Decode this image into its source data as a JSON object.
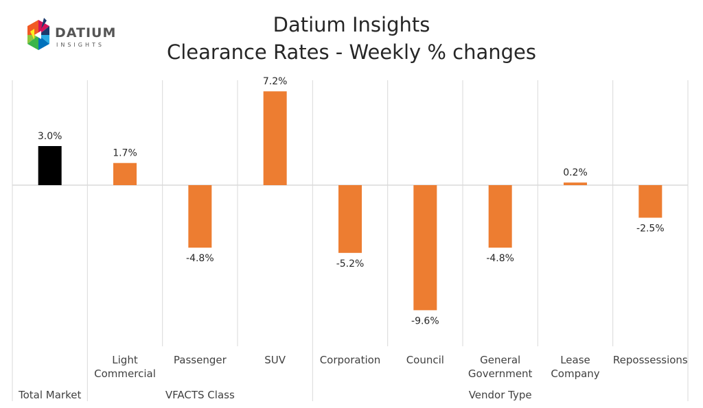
{
  "logo": {
    "text_main": "DATIUM",
    "text_sub": "INSIGHTS"
  },
  "chart_data": {
    "type": "bar",
    "title": [
      "Datium Insights",
      "Clearance Rates - Weekly % changes"
    ],
    "categories": [
      "Total Market",
      "Light Commercial",
      "Passenger",
      "SUV",
      "Corporation",
      "Council",
      "General Government",
      "Lease Company",
      "Repossessions"
    ],
    "category_labels": [
      [
        ""
      ],
      [
        "Light",
        "Commercial"
      ],
      [
        "Passenger"
      ],
      [
        "SUV"
      ],
      [
        "Corporation"
      ],
      [
        "Council"
      ],
      [
        "General",
        "Government"
      ],
      [
        "Lease",
        "Company"
      ],
      [
        "Repossessions"
      ]
    ],
    "groups": [
      {
        "label": "Total Market",
        "categories": [
          0
        ]
      },
      {
        "label": "VFACTS Class",
        "categories": [
          1,
          2,
          3
        ]
      },
      {
        "label": "Vendor Type",
        "categories": [
          4,
          5,
          6,
          7,
          8
        ]
      }
    ],
    "values": [
      3.0,
      1.7,
      -4.8,
      7.2,
      -5.2,
      -9.6,
      -4.8,
      0.2,
      -2.5
    ],
    "data_labels": [
      "3.0%",
      "1.7%",
      "-4.8%",
      "7.2%",
      "-5.2%",
      "-9.6%",
      "-4.8%",
      "0.2%",
      "-2.5%"
    ],
    "colors": {
      "total": "#000000",
      "segment": "#ED7D31",
      "grid": "#D9D9D9"
    },
    "xlabel": "",
    "ylabel": "",
    "ylim": [
      -12.5,
      8
    ],
    "grid": false,
    "legend": "none"
  }
}
